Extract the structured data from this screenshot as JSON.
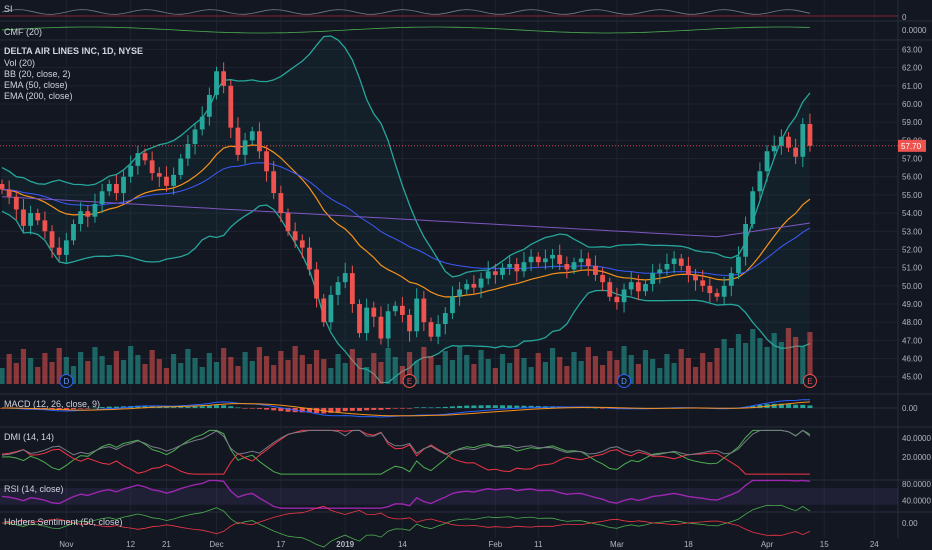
{
  "panes": {
    "si": {
      "label": "SI",
      "zero": "0"
    },
    "cmf": {
      "label": "CMF (20)",
      "zero": "0.0000"
    },
    "main": {
      "symbol": "DELTA AIR LINES INC, 1D, NYSE",
      "indicators": [
        "Vol (20)",
        "BB (20, close, 2)",
        "EMA (50, close)",
        "EMA (200, close)"
      ],
      "last_price": "57.70",
      "y_ticks": [
        "63.00",
        "62.00",
        "61.00",
        "60.00",
        "59.00",
        "58.00",
        "57.00",
        "56.00",
        "55.00",
        "54.00",
        "53.00",
        "52.00",
        "51.00",
        "50.00",
        "49.00",
        "48.00",
        "47.00",
        "46.00",
        "45.00"
      ],
      "events": [
        {
          "x": 9,
          "label": "D"
        },
        {
          "x": 57,
          "label": "E"
        },
        {
          "x": 87,
          "label": "D"
        },
        {
          "x": 113,
          "label": "E"
        }
      ]
    },
    "macd": {
      "label": "MACD (12, 26, close, 9)",
      "ticks": [
        "0.00"
      ]
    },
    "dmi": {
      "label": "DMI (14, 14)",
      "ticks": [
        "40.0000",
        "20.0000"
      ]
    },
    "rsi": {
      "label": "RSI (14, close)",
      "ticks": [
        "80.0000",
        "40.0000"
      ]
    },
    "holders": {
      "label": "Holders Sentiment (50, close)",
      "ticks": [
        "0.00"
      ]
    }
  },
  "x_axis": {
    "labels": [
      {
        "x": 9,
        "label": "Nov"
      },
      {
        "x": 18,
        "label": "12"
      },
      {
        "x": 23,
        "label": "21"
      },
      {
        "x": 30,
        "label": "Dec"
      },
      {
        "x": 39,
        "label": "17"
      },
      {
        "x": 48,
        "label": "2019"
      },
      {
        "x": 56,
        "label": "14"
      },
      {
        "x": 69,
        "label": "Feb"
      },
      {
        "x": 75,
        "label": "11"
      },
      {
        "x": 86,
        "label": "Mar"
      },
      {
        "x": 96,
        "label": "18"
      },
      {
        "x": 107,
        "label": "Apr"
      },
      {
        "x": 115,
        "label": "15"
      },
      {
        "x": 122,
        "label": "24"
      }
    ]
  },
  "colors": {
    "up": "#26a69a",
    "down": "#ef5350",
    "bb": "#26a69a",
    "ema50": "#f7931a",
    "ema200": "#3d5afe",
    "ema200b": "#7e57c2",
    "rsi": "#9c27b0",
    "dmi_plus": "#4caf50",
    "dmi_minus": "#f23645",
    "adx": "#787b86"
  },
  "chart_data": {
    "type": "candlestick",
    "title": "DELTA AIR LINES INC, 1D, NYSE",
    "ylim": [
      44.6,
      63.3
    ],
    "x_index_range": [
      0,
      124
    ],
    "closes": [
      55.3,
      54.9,
      54.2,
      53.3,
      54.0,
      53.6,
      53.0,
      52.1,
      51.7,
      52.5,
      53.4,
      54.1,
      53.8,
      54.5,
      55.2,
      55.6,
      55.1,
      56.0,
      56.6,
      57.3,
      56.9,
      56.2,
      56.0,
      55.5,
      56.1,
      57.0,
      57.8,
      58.6,
      59.3,
      60.5,
      61.8,
      61.0,
      58.7,
      57.2,
      58.0,
      58.5,
      57.4,
      56.3,
      55.1,
      54.0,
      53.0,
      52.5,
      52.1,
      50.9,
      49.3,
      48.0,
      49.5,
      50.2,
      50.7,
      49.0,
      47.4,
      48.8,
      48.3,
      47.1,
      48.6,
      48.9,
      48.4,
      47.5,
      49.3,
      48.0,
      47.2,
      47.9,
      48.5,
      49.4,
      49.8,
      50.1,
      49.9,
      50.4,
      50.8,
      50.6,
      51.0,
      51.2,
      50.8,
      51.3,
      51.6,
      51.3,
      51.5,
      51.7,
      51.2,
      50.9,
      51.3,
      51.5,
      51.1,
      50.6,
      50.2,
      49.4,
      49.1,
      49.8,
      50.2,
      49.7,
      50.1,
      50.7,
      50.9,
      51.2,
      51.5,
      51.1,
      50.6,
      50.3,
      50.0,
      49.6,
      49.4,
      50.0,
      50.7,
      51.6,
      53.4,
      55.2,
      56.3,
      57.4,
      57.7,
      58.2,
      57.6,
      57.1,
      58.9,
      57.7
    ]
  }
}
